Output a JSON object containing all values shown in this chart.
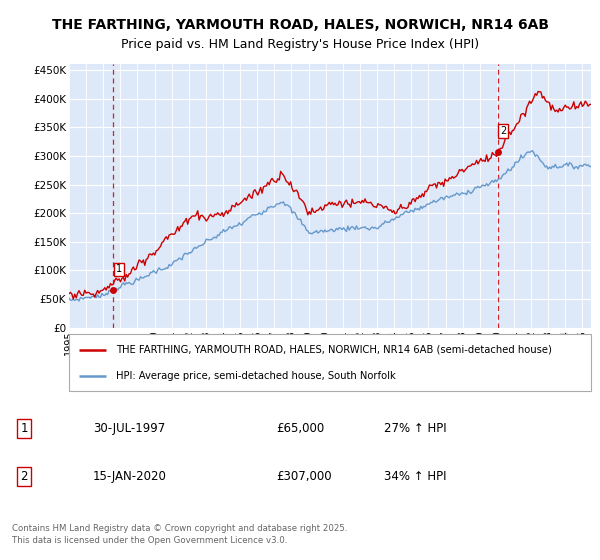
{
  "title": "THE FARTHING, YARMOUTH ROAD, HALES, NORWICH, NR14 6AB",
  "subtitle": "Price paid vs. HM Land Registry's House Price Index (HPI)",
  "ylabel_ticks": [
    "£0",
    "£50K",
    "£100K",
    "£150K",
    "£200K",
    "£250K",
    "£300K",
    "£350K",
    "£400K",
    "£450K"
  ],
  "ytick_vals": [
    0,
    50000,
    100000,
    150000,
    200000,
    250000,
    300000,
    350000,
    400000,
    450000
  ],
  "ylim": [
    0,
    460000
  ],
  "xlim_start": 1995.0,
  "xlim_end": 2025.5,
  "sale1_x": 1997.58,
  "sale1_y": 65000,
  "sale1_label": "1",
  "sale2_x": 2020.04,
  "sale2_y": 307000,
  "sale2_label": "2",
  "legend_line1": "THE FARTHING, YARMOUTH ROAD, HALES, NORWICH, NR14 6AB (semi-detached house)",
  "legend_line2": "HPI: Average price, semi-detached house, South Norfolk",
  "table_row1": [
    "1",
    "30-JUL-1997",
    "£65,000",
    "27% ↑ HPI"
  ],
  "table_row2": [
    "2",
    "15-JAN-2020",
    "£307,000",
    "34% ↑ HPI"
  ],
  "footnote": "Contains HM Land Registry data © Crown copyright and database right 2025.\nThis data is licensed under the Open Government Licence v3.0.",
  "red_color": "#cc0000",
  "blue_color": "#6699cc",
  "bg_color": "#dde8f8",
  "title_fontsize": 10,
  "subtitle_fontsize": 9
}
